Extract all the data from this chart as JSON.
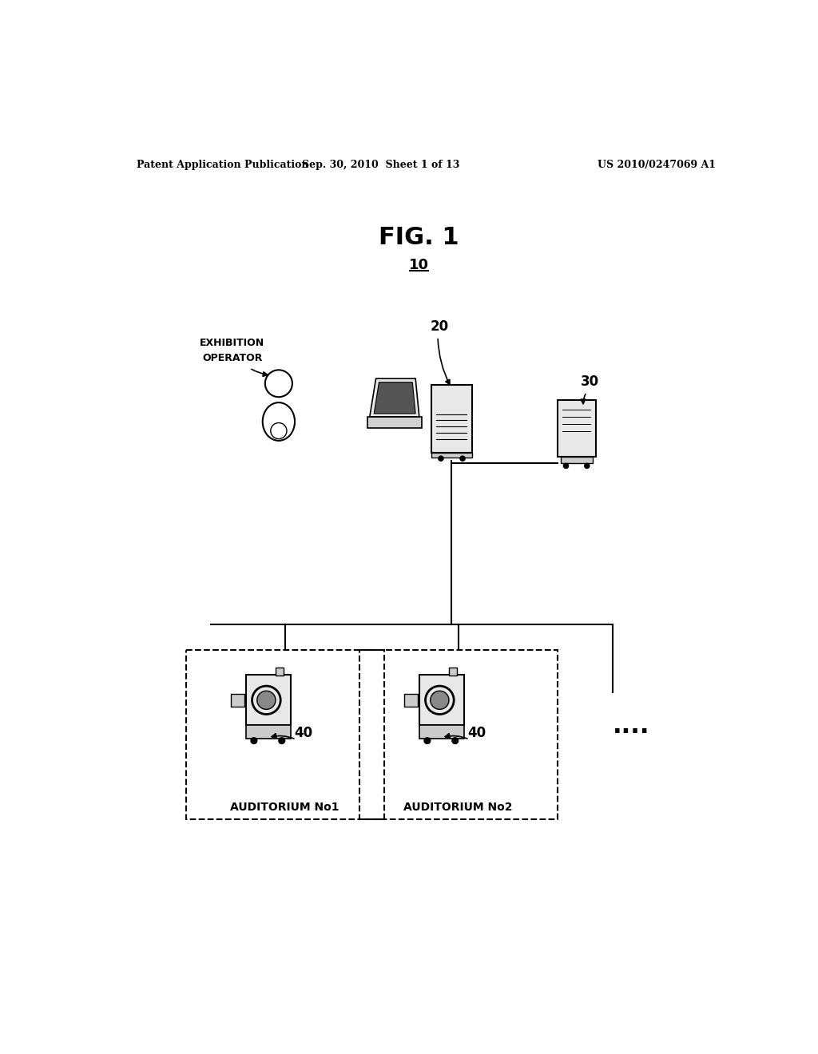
{
  "title": "FIG. 1",
  "title_label": "10",
  "header_left": "Patent Application Publication",
  "header_mid": "Sep. 30, 2010  Sheet 1 of 13",
  "header_right": "US 2010/0247069 A1",
  "bg_color": "#ffffff",
  "line_color": "#000000",
  "text_color": "#000000"
}
